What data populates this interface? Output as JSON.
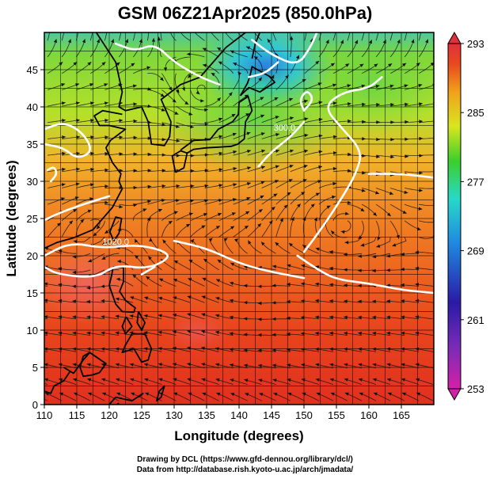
{
  "title": "GSM 06Z21Apr2025 (850.0hPa)",
  "xaxis": {
    "label": "Longitude (degrees)",
    "min": 110,
    "max": 170,
    "ticks": [
      110,
      115,
      120,
      125,
      130,
      135,
      140,
      145,
      150,
      155,
      160,
      165
    ]
  },
  "yaxis": {
    "label": "Latitude (degrees)",
    "min": 0,
    "max": 50,
    "ticks": [
      0,
      5,
      10,
      15,
      20,
      25,
      30,
      35,
      40,
      45
    ]
  },
  "colorbar": {
    "min": 253,
    "max": 293,
    "labels": [
      293,
      285,
      277,
      269,
      261,
      253
    ],
    "colors": [
      "#d61fa8",
      "#2a1aa6",
      "#1f88e0",
      "#27d9c8",
      "#3ccf2a",
      "#d8e61e",
      "#f2a11a",
      "#e84a1e",
      "#e0303a"
    ]
  },
  "contour_labels": [
    "300.0",
    "1020.0"
  ],
  "credits": {
    "line1": "Drawing by DCL (https://www.gfd-dennou.org/library/dcl/)",
    "line2": "Data from http://database.rish.kyoto-u.ac.jp/arch/jmadata/"
  },
  "colors": {
    "frame": "#000000",
    "contour": "#ffffff",
    "stream": "#111111"
  }
}
